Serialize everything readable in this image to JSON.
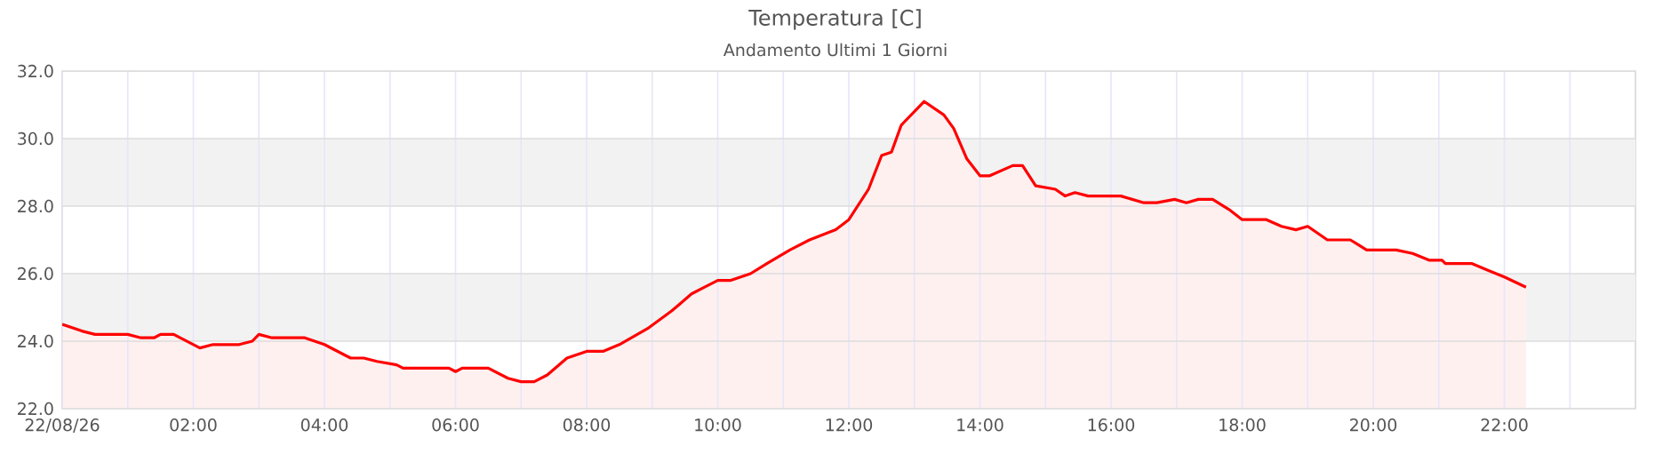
{
  "chart_data": {
    "type": "area",
    "title": "Temperatura [C]",
    "subtitle": "Andamento Ultimi 1 Giorni",
    "xlim": [
      0,
      24
    ],
    "xticks": [
      {
        "value": 0,
        "label": "22/08/26"
      },
      {
        "value": 1,
        "label": null
      },
      {
        "value": 2,
        "label": "02:00"
      },
      {
        "value": 3,
        "label": null
      },
      {
        "value": 4,
        "label": "04:00"
      },
      {
        "value": 5,
        "label": null
      },
      {
        "value": 6,
        "label": "06:00"
      },
      {
        "value": 7,
        "label": null
      },
      {
        "value": 8,
        "label": "08:00"
      },
      {
        "value": 9,
        "label": null
      },
      {
        "value": 10,
        "label": "10:00"
      },
      {
        "value": 11,
        "label": null
      },
      {
        "value": 12,
        "label": "12:00"
      },
      {
        "value": 13,
        "label": null
      },
      {
        "value": 14,
        "label": "14:00"
      },
      {
        "value": 15,
        "label": null
      },
      {
        "value": 16,
        "label": "16:00"
      },
      {
        "value": 17,
        "label": null
      },
      {
        "value": 18,
        "label": "18:00"
      },
      {
        "value": 19,
        "label": null
      },
      {
        "value": 20,
        "label": "20:00"
      },
      {
        "value": 21,
        "label": null
      },
      {
        "value": 22,
        "label": "22:00"
      },
      {
        "value": 23,
        "label": null
      }
    ],
    "ylim": [
      22,
      32
    ],
    "yticks": [
      {
        "value": 22,
        "label": "22.0"
      },
      {
        "value": 24,
        "label": "24.0"
      },
      {
        "value": 26,
        "label": "26.0"
      },
      {
        "value": 28,
        "label": "28.0"
      },
      {
        "value": 30,
        "label": "30.0"
      },
      {
        "value": 32,
        "label": "32.0"
      }
    ],
    "grid": true,
    "bands": [
      {
        "axis": "y",
        "from": 24,
        "to": 26,
        "color": "#f2f2f2"
      },
      {
        "axis": "y",
        "from": 28,
        "to": 30,
        "color": "#f2f2f2"
      }
    ],
    "x": [
      0.0,
      0.3,
      0.5,
      1.0,
      1.2,
      1.4,
      1.5,
      1.7,
      1.9,
      2.1,
      2.3,
      2.7,
      2.9,
      3.0,
      3.2,
      3.7,
      4.0,
      4.3,
      4.4,
      4.6,
      4.8,
      5.1,
      5.2,
      5.9,
      6.0,
      6.1,
      6.5,
      6.8,
      7.0,
      7.2,
      7.4,
      7.7,
      8.0,
      8.25,
      8.5,
      8.95,
      9.3,
      9.6,
      9.8,
      10.0,
      10.2,
      10.5,
      10.75,
      11.1,
      11.4,
      11.8,
      12.0,
      12.3,
      12.5,
      12.65,
      12.8,
      13.15,
      13.45,
      13.6,
      13.8,
      14.0,
      14.15,
      14.5,
      14.65,
      14.85,
      15.15,
      15.3,
      15.45,
      15.65,
      16.0,
      16.15,
      16.5,
      16.7,
      16.97,
      17.15,
      17.33,
      17.55,
      17.8,
      18.0,
      18.37,
      18.6,
      18.82,
      19.0,
      19.3,
      19.65,
      19.9,
      20.35,
      20.6,
      20.85,
      21.05,
      21.1,
      21.5,
      21.75,
      22.0,
      22.33
    ],
    "series": [
      {
        "color": "#ff0000",
        "values": [
          24.5,
          24.3,
          24.2,
          24.2,
          24.1,
          24.1,
          24.2,
          24.2,
          24.0,
          23.8,
          23.9,
          23.9,
          24.0,
          24.2,
          24.1,
          24.1,
          23.9,
          23.6,
          23.5,
          23.5,
          23.4,
          23.3,
          23.2,
          23.2,
          23.1,
          23.2,
          23.2,
          22.9,
          22.8,
          22.8,
          23.0,
          23.5,
          23.7,
          23.7,
          23.9,
          24.4,
          24.9,
          25.4,
          25.6,
          25.8,
          25.8,
          26.0,
          26.3,
          26.7,
          27.0,
          27.3,
          27.6,
          28.5,
          29.5,
          29.6,
          30.4,
          31.1,
          30.7,
          30.3,
          29.4,
          28.9,
          28.9,
          29.2,
          29.2,
          28.6,
          28.5,
          28.3,
          28.4,
          28.3,
          28.3,
          28.3,
          28.1,
          28.1,
          28.2,
          28.1,
          28.2,
          28.2,
          27.9,
          27.6,
          27.6,
          27.4,
          27.3,
          27.4,
          27.0,
          27.0,
          26.7,
          26.7,
          26.6,
          26.4,
          26.4,
          26.3,
          26.3,
          26.1,
          25.9,
          25.6
        ]
      }
    ]
  }
}
